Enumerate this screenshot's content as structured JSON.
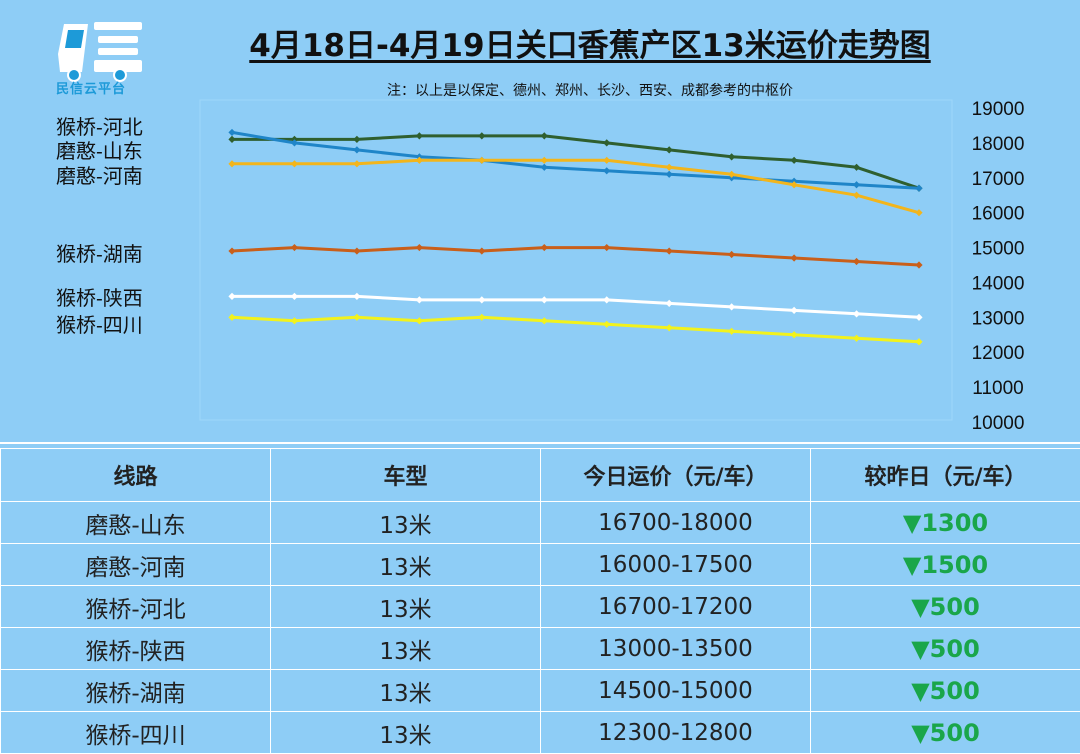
{
  "brand": {
    "logo_text": "民信云平台"
  },
  "title": "4月18日-4月19日关口香蕉产区13米运价走势图",
  "subtitle": "注：以上是以保定、德州、郑州、长沙、西安、成都参考的中枢价",
  "chart_data": {
    "type": "line",
    "x": [
      1,
      2,
      3,
      4,
      5,
      6,
      7,
      8,
      9,
      10,
      11,
      12
    ],
    "ylim": [
      10000,
      19000
    ],
    "yticks": [
      10000,
      11000,
      12000,
      13000,
      14000,
      15000,
      16000,
      17000,
      18000,
      19000
    ],
    "grid": false,
    "legend_position": "left",
    "series": [
      {
        "name": "猴桥-河北",
        "color": "#2f5f2f",
        "values": [
          18100,
          18100,
          18100,
          18200,
          18200,
          18200,
          18000,
          17800,
          17600,
          17500,
          17300,
          16700
        ]
      },
      {
        "name": "磨憨-山东",
        "color": "#1f85c8",
        "values": [
          18300,
          18000,
          17800,
          17600,
          17500,
          17300,
          17200,
          17100,
          17000,
          16900,
          16800,
          16700
        ]
      },
      {
        "name": "磨憨-河南",
        "color": "#f2b51c",
        "values": [
          17400,
          17400,
          17400,
          17500,
          17500,
          17500,
          17500,
          17300,
          17100,
          16800,
          16500,
          16000
        ]
      },
      {
        "name": "猴桥-湖南",
        "color": "#c95f1a",
        "values": [
          14900,
          15000,
          14900,
          15000,
          14900,
          15000,
          15000,
          14900,
          14800,
          14700,
          14600,
          14500
        ]
      },
      {
        "name": "猴桥-陕西",
        "color": "#ffffff",
        "values": [
          13600,
          13600,
          13600,
          13500,
          13500,
          13500,
          13500,
          13400,
          13300,
          13200,
          13100,
          13000
        ]
      },
      {
        "name": "猴桥-四川",
        "color": "#f2f21c",
        "values": [
          13000,
          12900,
          13000,
          12900,
          13000,
          12900,
          12800,
          12700,
          12600,
          12500,
          12400,
          12300
        ]
      }
    ]
  },
  "table": {
    "headers": [
      "线路",
      "车型",
      "今日运价（元/车）",
      "较昨日（元/车）"
    ],
    "rows": [
      [
        "磨憨-山东",
        "13米",
        "16700-18000",
        "▼1300"
      ],
      [
        "磨憨-河南",
        "13米",
        "16000-17500",
        "▼1500"
      ],
      [
        "猴桥-河北",
        "13米",
        "16700-17200",
        "▼500"
      ],
      [
        "猴桥-陕西",
        "13米",
        "13000-13500",
        "▼500"
      ],
      [
        "猴桥-湖南",
        "13米",
        "14500-15000",
        "▼500"
      ],
      [
        "猴桥-四川",
        "13米",
        "12300-12800",
        "▼500"
      ]
    ]
  }
}
